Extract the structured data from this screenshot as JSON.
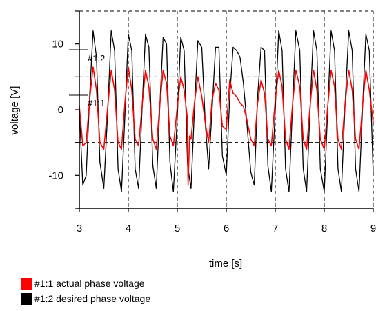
{
  "chart_data": {
    "type": "line",
    "title": "",
    "xlabel": "time [s]",
    "ylabel": "voltage [V]",
    "xlim": [
      3,
      9
    ],
    "ylim": [
      -15,
      15
    ],
    "xticks": [
      "3",
      "4",
      "5",
      "6",
      "7",
      "8",
      "9"
    ],
    "yticks": [
      "-10",
      "0",
      "10"
    ],
    "grid": true,
    "legend_position": "bottom-left",
    "series": [
      {
        "name": "#1:1 actual phase voltage",
        "tag": "#1:1",
        "color": "#ff0000",
        "x": [
          3.0,
          3.07,
          3.14,
          3.21,
          3.28,
          3.35,
          3.42,
          3.5,
          3.58,
          3.65,
          3.72,
          3.79,
          3.86,
          3.93,
          4.0,
          4.07,
          4.14,
          4.21,
          4.28,
          4.35,
          4.42,
          4.5,
          4.57,
          4.64,
          4.71,
          4.78,
          4.85,
          4.92,
          5.0,
          5.07,
          5.14,
          5.2,
          5.22,
          5.25,
          5.28,
          5.35,
          5.42,
          5.5,
          5.57,
          5.64,
          5.71,
          5.78,
          5.85,
          5.92,
          6.0,
          6.07,
          6.14,
          6.21,
          6.28,
          6.35,
          6.42,
          6.5,
          6.57,
          6.64,
          6.71,
          6.78,
          6.85,
          6.92,
          7.0,
          7.07,
          7.14,
          7.21,
          7.28,
          7.35,
          7.42,
          7.5,
          7.57,
          7.64,
          7.71,
          7.78,
          7.85,
          7.92,
          8.0,
          8.07,
          8.14,
          8.21,
          8.28,
          8.35,
          8.42,
          8.5,
          8.57,
          8.64,
          8.71,
          8.78,
          8.85,
          8.92,
          9.0
        ],
        "y": [
          0.5,
          -5.5,
          -5.0,
          1.5,
          6.5,
          3.0,
          -5.0,
          -6.0,
          0.5,
          6.0,
          3.0,
          -5.0,
          -6.0,
          1.0,
          6.5,
          3.0,
          -4.5,
          -5.5,
          0.5,
          6.0,
          3.5,
          -4.5,
          -6.0,
          0.5,
          6.0,
          4.0,
          -4.0,
          -5.5,
          0.5,
          5.0,
          3.0,
          -1.0,
          -11.5,
          -4.0,
          -4.5,
          1.0,
          5.0,
          2.0,
          -2.0,
          -5.0,
          1.5,
          4.0,
          3.0,
          -2.5,
          -3.0,
          4.5,
          2.5,
          2.0,
          1.0,
          0.5,
          -1.5,
          -4.5,
          -5.5,
          1.0,
          4.5,
          2.5,
          -4.5,
          -5.5,
          1.5,
          6.0,
          3.5,
          -4.5,
          -6.0,
          0.5,
          6.0,
          3.5,
          -4.5,
          -6.0,
          0.5,
          6.0,
          3.0,
          -4.5,
          -6.0,
          0.5,
          6.0,
          3.5,
          -4.5,
          -6.0,
          0.5,
          6.0,
          3.0,
          -4.5,
          -6.0,
          0.5,
          6.0,
          3.0,
          -2.0
        ]
      },
      {
        "name": "#1:2 desired phase voltage",
        "tag": "#1:2",
        "color": "#000000",
        "x": [
          3.0,
          3.07,
          3.14,
          3.21,
          3.28,
          3.35,
          3.42,
          3.5,
          3.58,
          3.65,
          3.72,
          3.79,
          3.86,
          3.93,
          4.0,
          4.07,
          4.14,
          4.21,
          4.28,
          4.35,
          4.42,
          4.5,
          4.57,
          4.64,
          4.71,
          4.78,
          4.85,
          4.92,
          5.0,
          5.07,
          5.14,
          5.21,
          5.28,
          5.35,
          5.42,
          5.5,
          5.57,
          5.64,
          5.71,
          5.78,
          5.85,
          5.92,
          6.0,
          6.07,
          6.14,
          6.21,
          6.28,
          6.35,
          6.42,
          6.5,
          6.57,
          6.64,
          6.71,
          6.78,
          6.85,
          6.92,
          7.0,
          7.07,
          7.14,
          7.21,
          7.28,
          7.35,
          7.42,
          7.5,
          7.57,
          7.64,
          7.71,
          7.78,
          7.85,
          7.92,
          8.0,
          8.07,
          8.14,
          8.21,
          8.28,
          8.35,
          8.42,
          8.5,
          8.57,
          8.64,
          8.71,
          8.78,
          8.85,
          8.92,
          9.0
        ],
        "y": [
          0.0,
          -11.5,
          -10.0,
          2.0,
          12.0,
          8.0,
          -8.0,
          -12.0,
          0.0,
          12.0,
          9.0,
          -9.0,
          -12.5,
          -1.0,
          11.5,
          9.0,
          -9.0,
          -12.0,
          0.0,
          11.5,
          9.5,
          -8.5,
          -12.0,
          0.0,
          11.0,
          10.0,
          -8.0,
          -12.5,
          -1.0,
          11.0,
          9.0,
          -8.5,
          -12.0,
          0.0,
          10.5,
          9.5,
          -2.0,
          -9.0,
          0.0,
          9.5,
          9.5,
          -7.0,
          -10.0,
          2.0,
          9.5,
          9.0,
          8.0,
          4.0,
          -2.0,
          -9.5,
          -11.5,
          2.0,
          9.5,
          9.0,
          -8.5,
          -12.5,
          0.0,
          12.0,
          9.0,
          -9.0,
          -12.5,
          0.0,
          12.0,
          9.0,
          -9.0,
          -12.5,
          0.0,
          12.0,
          9.0,
          -9.0,
          -12.5,
          0.0,
          12.0,
          9.0,
          -9.0,
          -12.5,
          0.0,
          12.0,
          9.0,
          -9.0,
          -12.5,
          0.0,
          11.5,
          9.0,
          -10.0
        ]
      }
    ]
  }
}
